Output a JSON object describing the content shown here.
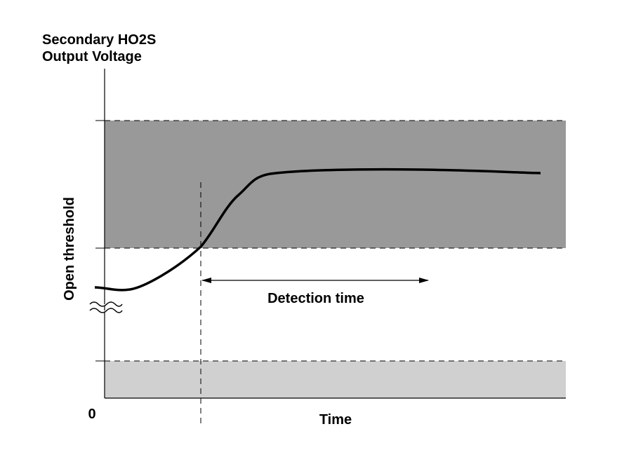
{
  "axis_title": {
    "line1": "Secondary HO2S",
    "line2": "Output Voltage"
  },
  "y_label": "Open threshold",
  "x_label": "Time",
  "origin_label": "0",
  "annotation": "Detection time"
}
